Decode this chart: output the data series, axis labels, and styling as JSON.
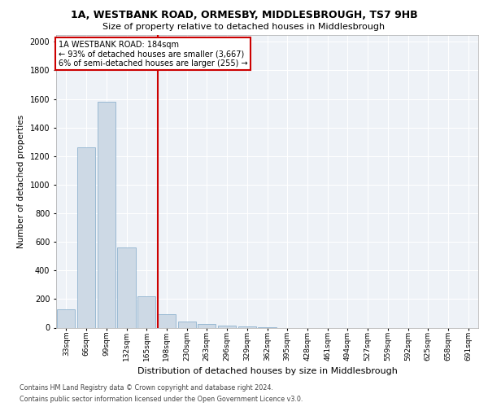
{
  "title1": "1A, WESTBANK ROAD, ORMESBY, MIDDLESBROUGH, TS7 9HB",
  "title2": "Size of property relative to detached houses in Middlesbrough",
  "xlabel": "Distribution of detached houses by size in Middlesbrough",
  "ylabel": "Number of detached properties",
  "categories": [
    "33sqm",
    "66sqm",
    "99sqm",
    "132sqm",
    "165sqm",
    "198sqm",
    "230sqm",
    "263sqm",
    "296sqm",
    "329sqm",
    "362sqm",
    "395sqm",
    "428sqm",
    "461sqm",
    "494sqm",
    "527sqm",
    "559sqm",
    "592sqm",
    "625sqm",
    "658sqm",
    "691sqm"
  ],
  "values": [
    130,
    1260,
    1580,
    560,
    220,
    95,
    45,
    25,
    15,
    10,
    5,
    0,
    0,
    0,
    0,
    0,
    0,
    0,
    0,
    0,
    0
  ],
  "bar_color": "#cdd9e5",
  "bar_edge_color": "#7fa8c8",
  "vline_color": "#cc0000",
  "vline_pos": 4.57,
  "ylim": [
    0,
    2050
  ],
  "yticks": [
    0,
    200,
    400,
    600,
    800,
    1000,
    1200,
    1400,
    1600,
    1800,
    2000
  ],
  "annotation_text": "1A WESTBANK ROAD: 184sqm\n← 93% of detached houses are smaller (3,667)\n6% of semi-detached houses are larger (255) →",
  "annotation_box_color": "#cc0000",
  "footnote1": "Contains HM Land Registry data © Crown copyright and database right 2024.",
  "footnote2": "Contains public sector information licensed under the Open Government Licence v3.0.",
  "background_color": "#eef2f7",
  "grid_color": "#ffffff",
  "title1_fontsize": 9.0,
  "title2_fontsize": 8.0,
  "ylabel_fontsize": 7.5,
  "xlabel_fontsize": 8.0,
  "tick_fontsize": 6.5,
  "annot_fontsize": 7.0,
  "footnote_fontsize": 5.8
}
